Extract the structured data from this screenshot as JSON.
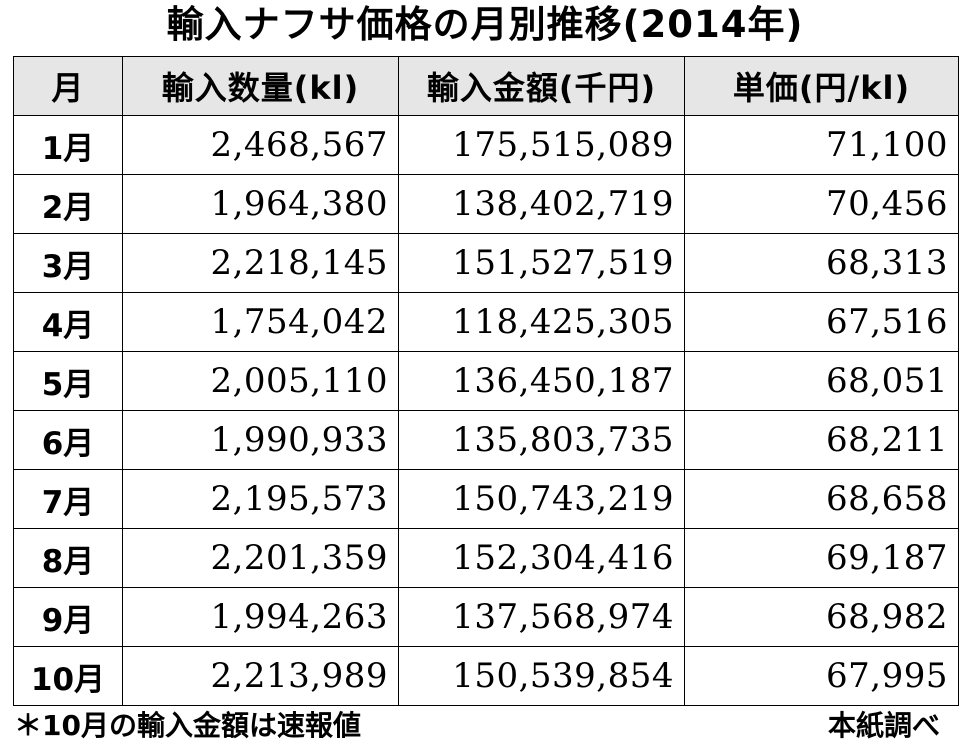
{
  "title": "輸入ナフサ価格の月別推移(2014年)",
  "table": {
    "headers": [
      "月",
      "輸入数量(kl)",
      "輸入金額(千円)",
      "単価(円/kl)"
    ],
    "rows": [
      [
        "1月",
        "2,468,567",
        "175,515,089",
        "71,100"
      ],
      [
        "2月",
        "1,964,380",
        "138,402,719",
        "70,456"
      ],
      [
        "3月",
        "2,218,145",
        "151,527,519",
        "68,313"
      ],
      [
        "4月",
        "1,754,042",
        "118,425,305",
        "67,516"
      ],
      [
        "5月",
        "2,005,110",
        "136,450,187",
        "68,051"
      ],
      [
        "6月",
        "1,990,933",
        "135,803,735",
        "68,211"
      ],
      [
        "7月",
        "2,195,573",
        "150,743,219",
        "68,658"
      ],
      [
        "8月",
        "2,201,359",
        "152,304,416",
        "69,187"
      ],
      [
        "9月",
        "1,994,263",
        "137,568,974",
        "68,982"
      ],
      [
        "10月",
        "2,213,989",
        "150,539,854",
        "67,995"
      ]
    ]
  },
  "footnote": "＊10月の輸入金額は速報値",
  "source": "本紙調べ",
  "colors": {
    "header_background": "#e6e6e6",
    "border": "#000000",
    "text": "#000000"
  }
}
